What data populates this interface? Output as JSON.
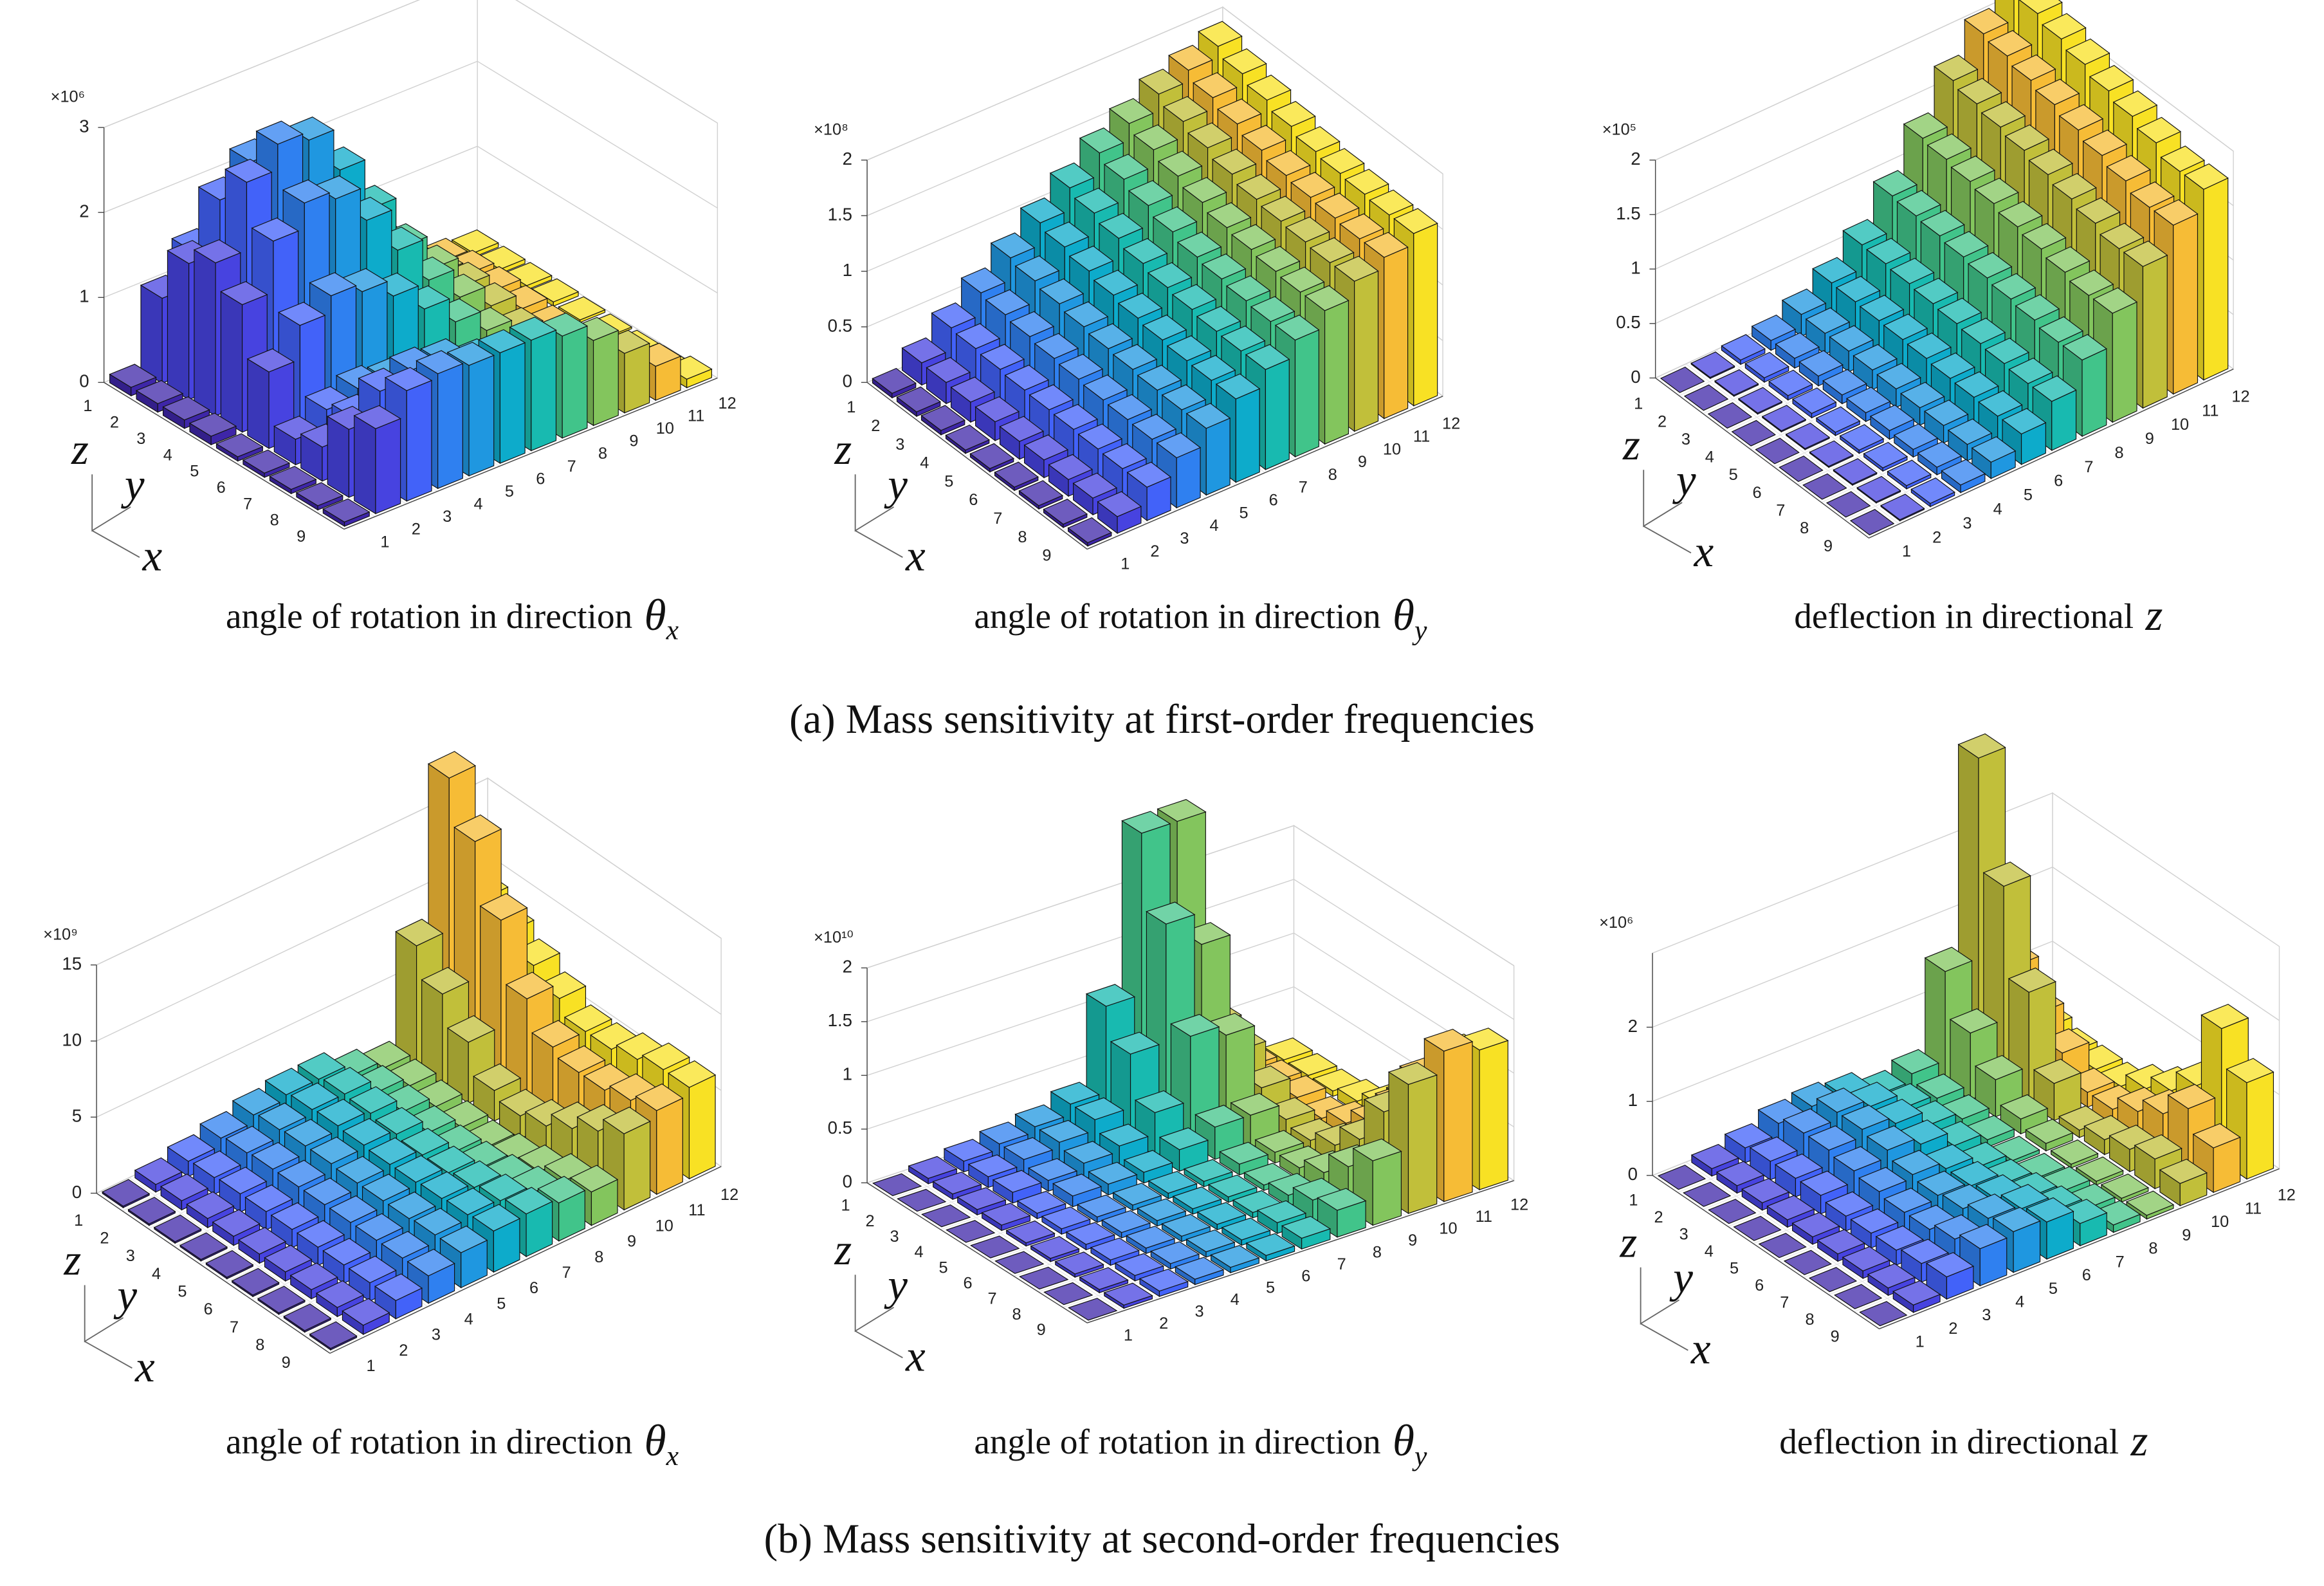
{
  "captions": [
    "(a) Mass sensitivity at first-order frequencies",
    "(b) Mass sensitivity at second-order frequencies"
  ],
  "chart_data": [
    {
      "type": "bar3d",
      "title": {
        "text": "angle of rotation in direction",
        "symbol": "θ",
        "subscript": "x"
      },
      "multiplier": "×10⁶",
      "axis_labels": {
        "z": "z",
        "y": "y",
        "x": "x"
      },
      "x_categories": [
        1,
        2,
        3,
        4,
        5,
        6,
        7,
        8,
        9
      ],
      "y_categories": [
        1,
        2,
        3,
        4,
        5,
        6,
        7,
        8,
        9,
        10,
        11,
        12
      ],
      "zlim": [
        0,
        3
      ],
      "zticks": [
        0,
        1,
        2,
        3
      ],
      "colors": [
        "#3e26a8",
        "#4743e0",
        "#4262f9",
        "#2f80f0",
        "#1f97e0",
        "#0dabcb",
        "#18bab0",
        "#41c48a",
        "#83c55d",
        "#c1bf3a",
        "#f6bc36",
        "#f8e124"
      ],
      "values": [
        [
          0.1,
          1.0,
          1.4,
          1.5,
          1.4,
          1.2,
          0.9,
          0.6,
          0.4,
          0.2,
          0.1,
          0.05
        ],
        [
          0.1,
          1.6,
          2.2,
          2.5,
          2.4,
          2.0,
          1.5,
          1.0,
          0.6,
          0.3,
          0.15,
          0.05
        ],
        [
          0.1,
          1.8,
          2.6,
          2.9,
          2.8,
          2.3,
          1.7,
          1.1,
          0.7,
          0.35,
          0.15,
          0.05
        ],
        [
          0.1,
          1.5,
          2.1,
          2.4,
          2.3,
          1.9,
          1.4,
          0.9,
          0.55,
          0.3,
          0.12,
          0.05
        ],
        [
          0.05,
          0.9,
          1.3,
          1.5,
          1.4,
          1.2,
          0.9,
          0.6,
          0.35,
          0.2,
          0.08,
          0.03
        ],
        [
          0.05,
          0.3,
          0.5,
          0.6,
          0.55,
          0.45,
          0.35,
          0.25,
          0.15,
          0.08,
          0.04,
          0.02
        ],
        [
          0.05,
          0.4,
          0.6,
          0.7,
          0.65,
          0.55,
          0.4,
          0.3,
          0.2,
          0.1,
          0.05,
          0.02
        ],
        [
          0.05,
          0.8,
          1.1,
          1.2,
          1.15,
          1.0,
          0.8,
          0.55,
          0.35,
          0.2,
          0.08,
          0.03
        ],
        [
          0.05,
          1.0,
          1.3,
          1.35,
          1.3,
          1.3,
          1.3,
          1.2,
          1.0,
          0.7,
          0.4,
          0.1
        ]
      ]
    },
    {
      "type": "bar3d",
      "title": {
        "text": "angle of rotation in direction",
        "symbol": "θ",
        "subscript": "y"
      },
      "multiplier": "×10⁸",
      "axis_labels": {
        "z": "z",
        "y": "y",
        "x": "x"
      },
      "x_categories": [
        1,
        2,
        3,
        4,
        5,
        6,
        7,
        8,
        9
      ],
      "y_categories": [
        1,
        2,
        3,
        4,
        5,
        6,
        7,
        8,
        9,
        10,
        11,
        12
      ],
      "zlim": [
        0,
        2
      ],
      "zticks": [
        0,
        0.5,
        1,
        1.5,
        2
      ],
      "colors": [
        "#3e26a8",
        "#4743e0",
        "#4262f9",
        "#2f80f0",
        "#1f97e0",
        "#0dabcb",
        "#18bab0",
        "#41c48a",
        "#83c55d",
        "#c1bf3a",
        "#f6bc36",
        "#f8e124"
      ],
      "values": [
        [
          0.04,
          0.2,
          0.4,
          0.6,
          0.8,
          1.0,
          1.2,
          1.4,
          1.55,
          1.7,
          1.8,
          1.9
        ],
        [
          0.04,
          0.19,
          0.38,
          0.57,
          0.76,
          0.95,
          1.14,
          1.33,
          1.48,
          1.62,
          1.72,
          1.82
        ],
        [
          0.04,
          0.18,
          0.36,
          0.54,
          0.72,
          0.9,
          1.08,
          1.26,
          1.41,
          1.55,
          1.65,
          1.75
        ],
        [
          0.03,
          0.17,
          0.34,
          0.51,
          0.68,
          0.85,
          1.02,
          1.19,
          1.34,
          1.48,
          1.58,
          1.68
        ],
        [
          0.03,
          0.16,
          0.33,
          0.49,
          0.65,
          0.81,
          0.97,
          1.13,
          1.28,
          1.42,
          1.52,
          1.62
        ],
        [
          0.03,
          0.16,
          0.32,
          0.47,
          0.63,
          0.78,
          0.94,
          1.1,
          1.25,
          1.39,
          1.49,
          1.59
        ],
        [
          0.03,
          0.15,
          0.31,
          0.46,
          0.61,
          0.76,
          0.91,
          1.07,
          1.22,
          1.37,
          1.47,
          1.57
        ],
        [
          0.03,
          0.15,
          0.3,
          0.45,
          0.6,
          0.75,
          0.9,
          1.05,
          1.2,
          1.35,
          1.45,
          1.55
        ],
        [
          0.03,
          0.15,
          0.3,
          0.45,
          0.6,
          0.75,
          0.9,
          1.05,
          1.2,
          1.35,
          1.45,
          1.55
        ]
      ]
    },
    {
      "type": "bar3d",
      "title": {
        "text": "deflection in directional",
        "symbol": "z"
      },
      "multiplier": "×10⁵",
      "axis_labels": {
        "z": "z",
        "y": "y",
        "x": "x"
      },
      "x_categories": [
        1,
        2,
        3,
        4,
        5,
        6,
        7,
        8,
        9
      ],
      "y_categories": [
        1,
        2,
        3,
        4,
        5,
        6,
        7,
        8,
        9,
        10,
        11,
        12
      ],
      "zlim": [
        0,
        2
      ],
      "zticks": [
        0,
        0.5,
        1,
        1.5,
        2
      ],
      "colors": [
        "#3e26a8",
        "#4743e0",
        "#4262f9",
        "#2f80f0",
        "#1f97e0",
        "#0dabcb",
        "#18bab0",
        "#41c48a",
        "#83c55d",
        "#c1bf3a",
        "#f6bc36",
        "#f8e124"
      ],
      "values": [
        [
          0,
          0.01,
          0.04,
          0.09,
          0.2,
          0.36,
          0.58,
          0.9,
          1.3,
          1.7,
          2.0,
          2.3
        ],
        [
          0,
          0.01,
          0.04,
          0.09,
          0.19,
          0.35,
          0.57,
          0.88,
          1.27,
          1.65,
          1.96,
          2.22
        ],
        [
          0,
          0.01,
          0.04,
          0.09,
          0.19,
          0.34,
          0.55,
          0.86,
          1.23,
          1.6,
          1.9,
          2.15
        ],
        [
          0,
          0.01,
          0.04,
          0.08,
          0.18,
          0.33,
          0.53,
          0.83,
          1.19,
          1.55,
          1.84,
          2.08
        ],
        [
          0,
          0.01,
          0.03,
          0.08,
          0.17,
          0.32,
          0.51,
          0.8,
          1.14,
          1.49,
          1.77,
          2.0
        ],
        [
          0,
          0.01,
          0.03,
          0.08,
          0.16,
          0.3,
          0.49,
          0.77,
          1.1,
          1.43,
          1.7,
          1.93
        ],
        [
          0,
          0.01,
          0.03,
          0.07,
          0.16,
          0.29,
          0.47,
          0.74,
          1.05,
          1.37,
          1.63,
          1.85
        ],
        [
          0,
          0.01,
          0.03,
          0.07,
          0.15,
          0.28,
          0.45,
          0.7,
          1.0,
          1.3,
          1.55,
          1.75
        ],
        [
          0,
          0.01,
          0.03,
          0.07,
          0.15,
          0.28,
          0.45,
          0.7,
          1.0,
          1.3,
          1.55,
          1.75
        ]
      ]
    },
    {
      "type": "bar3d",
      "title": {
        "text": "angle of rotation in direction",
        "symbol": "θ",
        "subscript": "x"
      },
      "multiplier": "×10⁹",
      "axis_labels": {
        "z": "z",
        "y": "y",
        "x": "x"
      },
      "x_categories": [
        1,
        2,
        3,
        4,
        5,
        6,
        7,
        8,
        9
      ],
      "y_categories": [
        1,
        2,
        3,
        4,
        5,
        6,
        7,
        8,
        9,
        10,
        11,
        12
      ],
      "zlim": [
        0,
        15
      ],
      "zticks": [
        0,
        5,
        10,
        15
      ],
      "colors": [
        "#3e26a8",
        "#4743e0",
        "#4262f9",
        "#2f80f0",
        "#1f97e0",
        "#0dabcb",
        "#18bab0",
        "#41c48a",
        "#83c55d",
        "#c1bf3a",
        "#f6bc36",
        "#f8e124"
      ],
      "values": [
        [
          0.1,
          0.5,
          1.0,
          1.5,
          2.0,
          2.3,
          2.3,
          1.5,
          1.0,
          8,
          18,
          9
        ],
        [
          0.1,
          0.6,
          1.1,
          1.7,
          2.2,
          2.5,
          2.5,
          1.6,
          1.0,
          6,
          15,
          8
        ],
        [
          0.1,
          0.6,
          1.2,
          1.8,
          2.3,
          2.6,
          2.4,
          1.5,
          0.8,
          4,
          11,
          7
        ],
        [
          0.1,
          0.6,
          1.2,
          1.8,
          2.3,
          2.5,
          2.2,
          1.3,
          0.6,
          2,
          7,
          6
        ],
        [
          0.1,
          0.6,
          1.2,
          1.8,
          2.2,
          2.4,
          2.0,
          1.2,
          0.5,
          1.5,
          5,
          5
        ],
        [
          0.1,
          0.6,
          1.2,
          1.8,
          2.2,
          2.4,
          2.0,
          1.3,
          0.8,
          2,
          4.5,
          5
        ],
        [
          0.1,
          0.6,
          1.2,
          1.8,
          2.2,
          2.5,
          2.2,
          1.6,
          1.2,
          3,
          4.5,
          5.5
        ],
        [
          0.1,
          0.6,
          1.2,
          1.8,
          2.3,
          2.6,
          2.5,
          2.0,
          1.8,
          4,
          5,
          6
        ],
        [
          0.1,
          0.6,
          1.2,
          1.8,
          2.3,
          2.7,
          2.8,
          2.5,
          2.2,
          5,
          5.5,
          6
        ]
      ]
    },
    {
      "type": "bar3d",
      "title": {
        "text": "angle of rotation in direction",
        "symbol": "θ",
        "subscript": "y"
      },
      "multiplier": "×10¹⁰",
      "axis_labels": {
        "z": "z",
        "y": "y",
        "x": "x"
      },
      "x_categories": [
        1,
        2,
        3,
        4,
        5,
        6,
        7,
        8,
        9
      ],
      "y_categories": [
        1,
        2,
        3,
        4,
        5,
        6,
        7,
        8,
        9,
        10,
        11,
        12
      ],
      "zlim": [
        0,
        2
      ],
      "zticks": [
        0,
        0.5,
        1,
        1.5,
        2
      ],
      "colors": [
        "#3e26a8",
        "#4743e0",
        "#4262f9",
        "#2f80f0",
        "#1f97e0",
        "#0dabcb",
        "#18bab0",
        "#41c48a",
        "#83c55d",
        "#c1bf3a",
        "#f6bc36",
        "#f8e124"
      ],
      "values": [
        [
          0,
          0.05,
          0.1,
          0.15,
          0.2,
          0.3,
          1.1,
          2.6,
          2.6,
          0.6,
          0.1,
          0.05
        ],
        [
          0,
          0.05,
          0.1,
          0.15,
          0.2,
          0.3,
          0.8,
          1.9,
          1.6,
          0.5,
          0.1,
          0.05
        ],
        [
          0,
          0.05,
          0.1,
          0.1,
          0.15,
          0.2,
          0.4,
          1.0,
          0.9,
          0.3,
          0.1,
          0.05
        ],
        [
          0,
          0.05,
          0.05,
          0.1,
          0.1,
          0.1,
          0.2,
          0.3,
          0.3,
          0.15,
          0.05,
          0.1
        ],
        [
          0,
          0.03,
          0.05,
          0.05,
          0.05,
          0.05,
          0.05,
          0.1,
          0.1,
          0.1,
          0.15,
          0.2
        ],
        [
          0,
          0.03,
          0.05,
          0.05,
          0.05,
          0.05,
          0.05,
          0.05,
          0.1,
          0.2,
          0.3,
          0.4
        ],
        [
          0,
          0.03,
          0.05,
          0.05,
          0.05,
          0.05,
          0.05,
          0.1,
          0.2,
          0.4,
          0.6,
          0.7
        ],
        [
          0,
          0.03,
          0.05,
          0.05,
          0.05,
          0.05,
          0.1,
          0.2,
          0.4,
          0.8,
          1.0,
          1.1
        ],
        [
          0,
          0.03,
          0.05,
          0.05,
          0.05,
          0.05,
          0.1,
          0.25,
          0.6,
          1.2,
          1.4,
          1.3
        ]
      ]
    },
    {
      "type": "bar3d",
      "title": {
        "text": "deflection in directional",
        "symbol": "z"
      },
      "multiplier": "×10⁶",
      "axis_labels": {
        "z": "z",
        "y": "y",
        "x": "x"
      },
      "x_categories": [
        1,
        2,
        3,
        4,
        5,
        6,
        7,
        8,
        9
      ],
      "y_categories": [
        1,
        2,
        3,
        4,
        5,
        6,
        7,
        8,
        9,
        10,
        11,
        12
      ],
      "zlim": [
        0,
        3
      ],
      "zticks": [
        0,
        1,
        2
      ],
      "colors": [
        "#3e26a8",
        "#4743e0",
        "#4262f9",
        "#2f80f0",
        "#1f97e0",
        "#0dabcb",
        "#18bab0",
        "#41c48a",
        "#83c55d",
        "#c1bf3a",
        "#f6bc36",
        "#f8e124"
      ],
      "values": [
        [
          0,
          0.1,
          0.2,
          0.35,
          0.4,
          0.35,
          0.2,
          0.3,
          1.5,
          4.2,
          1.2,
          0.2
        ],
        [
          0,
          0.1,
          0.25,
          0.45,
          0.55,
          0.45,
          0.25,
          0.2,
          0.9,
          2.7,
          0.8,
          0.1
        ],
        [
          0,
          0.1,
          0.25,
          0.45,
          0.55,
          0.45,
          0.25,
          0.15,
          0.5,
          1.5,
          0.5,
          0.1
        ],
        [
          0,
          0.1,
          0.25,
          0.4,
          0.5,
          0.4,
          0.2,
          0.1,
          0.2,
          0.5,
          0.2,
          0.1
        ],
        [
          0,
          0.1,
          0.2,
          0.35,
          0.4,
          0.3,
          0.15,
          0.05,
          0.1,
          0.1,
          0.2,
          0.3
        ],
        [
          0,
          0.1,
          0.2,
          0.3,
          0.35,
          0.3,
          0.15,
          0.05,
          0.05,
          0.2,
          0.4,
          0.5
        ],
        [
          0,
          0.1,
          0.2,
          0.3,
          0.4,
          0.35,
          0.2,
          0.1,
          0.05,
          0.3,
          0.6,
          0.8
        ],
        [
          0,
          0.1,
          0.25,
          0.4,
          0.5,
          0.45,
          0.25,
          0.1,
          0.05,
          0.4,
          0.9,
          1.8
        ],
        [
          0,
          0.1,
          0.3,
          0.5,
          0.55,
          0.5,
          0.3,
          0.1,
          0.05,
          0.3,
          0.6,
          1.3
        ]
      ]
    }
  ]
}
